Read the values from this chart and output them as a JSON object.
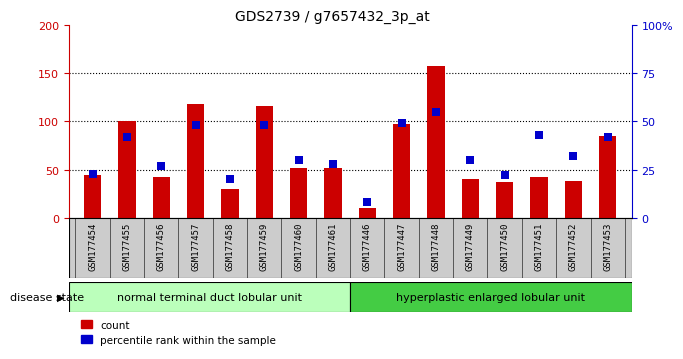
{
  "title": "GDS2739 / g7657432_3p_at",
  "samples": [
    "GSM177454",
    "GSM177455",
    "GSM177456",
    "GSM177457",
    "GSM177458",
    "GSM177459",
    "GSM177460",
    "GSM177461",
    "GSM177446",
    "GSM177447",
    "GSM177448",
    "GSM177449",
    "GSM177450",
    "GSM177451",
    "GSM177452",
    "GSM177453"
  ],
  "counts": [
    45,
    100,
    42,
    118,
    30,
    116,
    52,
    52,
    10,
    97,
    158,
    40,
    37,
    42,
    38,
    85
  ],
  "percentiles": [
    23,
    42,
    27,
    48,
    20,
    48,
    30,
    28,
    8,
    49,
    55,
    30,
    22,
    43,
    32,
    42
  ],
  "group1_label": "normal terminal duct lobular unit",
  "group2_label": "hyperplastic enlarged lobular unit",
  "group1_count": 8,
  "group2_count": 8,
  "bar_color_red": "#cc0000",
  "bar_color_blue": "#0000cc",
  "ylim_left": [
    0,
    200
  ],
  "ylim_right": [
    0,
    100
  ],
  "yticks_left": [
    0,
    50,
    100,
    150,
    200
  ],
  "ytick_labels_right": [
    "0",
    "25",
    "50",
    "75",
    "100%"
  ],
  "group1_color": "#bbffbb",
  "group2_color": "#44cc44",
  "tick_area_color": "#cccccc",
  "disease_state_label": "disease state",
  "legend_count_label": "count",
  "legend_percentile_label": "percentile rank within the sample"
}
